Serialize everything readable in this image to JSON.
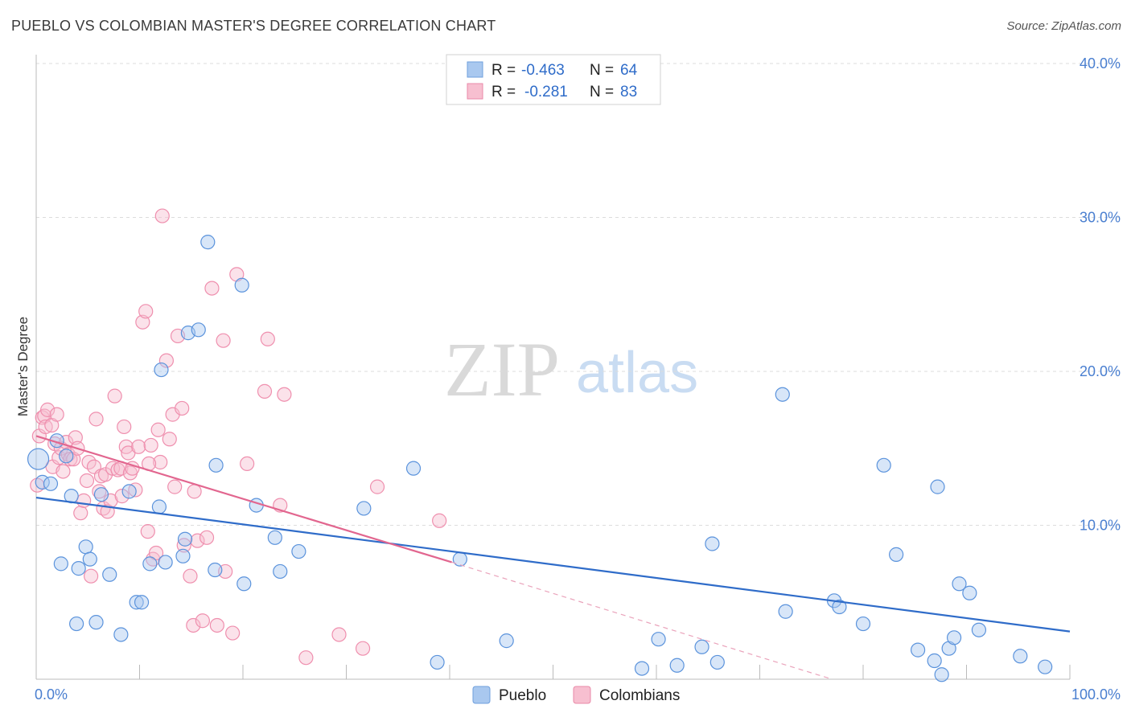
{
  "header": {
    "title": "PUEBLO VS COLOMBIAN MASTER'S DEGREE CORRELATION CHART",
    "source": "Source: ZipAtlas.com"
  },
  "legend": {
    "rows": [
      {
        "r_label": "R =",
        "r_value": "-0.463",
        "n_label": "N =",
        "n_value": "64",
        "color": "#a9c8ef",
        "stroke": "#6f9fdc"
      },
      {
        "r_label": "R =",
        "r_value": "-0.281",
        "n_label": "N =",
        "n_value": "83",
        "color": "#f7bfd0",
        "stroke": "#e98aa8"
      }
    ],
    "bottom": [
      {
        "label": "Pueblo",
        "color": "#a9c8ef",
        "stroke": "#6f9fdc"
      },
      {
        "label": "Colombians",
        "color": "#f7bfd0",
        "stroke": "#e98aa8"
      }
    ]
  },
  "watermark": {
    "zip": "ZIP",
    "atlas": "atlas"
  },
  "chart_data": {
    "type": "scatter",
    "title": "PUEBLO VS COLOMBIAN MASTER'S DEGREE CORRELATION CHART",
    "xlabel": "",
    "ylabel": "Master's Degree",
    "xlim": [
      0,
      100
    ],
    "ylim": [
      0,
      40
    ],
    "x_tick_labels": [
      "0.0%",
      "100.0%"
    ],
    "y_ticks": [
      10,
      20,
      30,
      40
    ],
    "y_tick_labels": [
      "10.0%",
      "20.0%",
      "30.0%",
      "40.0%"
    ],
    "grid": true,
    "legend_position": "top-center",
    "series": [
      {
        "name": "Pueblo",
        "color": "#5b93dc",
        "trend": {
          "x": [
            0,
            100
          ],
          "y": [
            11.8,
            3.1
          ],
          "color": "#2f6cc9"
        },
        "points": [
          [
            0.2,
            14.3
          ],
          [
            0.6,
            12.8
          ],
          [
            1.4,
            12.7
          ],
          [
            2.0,
            15.5
          ],
          [
            2.4,
            7.5
          ],
          [
            2.9,
            14.5
          ],
          [
            3.4,
            11.9
          ],
          [
            3.9,
            3.6
          ],
          [
            4.1,
            7.2
          ],
          [
            4.8,
            8.6
          ],
          [
            5.2,
            7.8
          ],
          [
            5.8,
            3.7
          ],
          [
            6.3,
            12.0
          ],
          [
            7.1,
            6.8
          ],
          [
            8.2,
            2.9
          ],
          [
            9.0,
            12.2
          ],
          [
            9.7,
            5.0
          ],
          [
            10.2,
            5.0
          ],
          [
            11.0,
            7.5
          ],
          [
            11.9,
            11.2
          ],
          [
            12.1,
            20.1
          ],
          [
            12.5,
            7.6
          ],
          [
            14.2,
            8.0
          ],
          [
            14.4,
            9.1
          ],
          [
            14.7,
            22.5
          ],
          [
            15.7,
            22.7
          ],
          [
            16.6,
            28.4
          ],
          [
            17.3,
            7.1
          ],
          [
            17.4,
            13.9
          ],
          [
            19.9,
            25.6
          ],
          [
            20.1,
            6.2
          ],
          [
            21.3,
            11.3
          ],
          [
            23.1,
            9.2
          ],
          [
            23.6,
            7.0
          ],
          [
            25.4,
            8.3
          ],
          [
            31.7,
            11.1
          ],
          [
            36.5,
            13.7
          ],
          [
            38.8,
            1.1
          ],
          [
            41.0,
            7.8
          ],
          [
            45.5,
            2.5
          ],
          [
            58.6,
            0.7
          ],
          [
            60.2,
            2.6
          ],
          [
            62.0,
            0.9
          ],
          [
            64.4,
            2.1
          ],
          [
            65.4,
            8.8
          ],
          [
            65.9,
            1.1
          ],
          [
            72.2,
            18.5
          ],
          [
            72.5,
            4.4
          ],
          [
            77.2,
            5.1
          ],
          [
            77.7,
            4.7
          ],
          [
            80.0,
            3.6
          ],
          [
            82.0,
            13.9
          ],
          [
            83.2,
            8.1
          ],
          [
            85.3,
            1.9
          ],
          [
            86.9,
            1.2
          ],
          [
            87.2,
            12.5
          ],
          [
            88.3,
            2.0
          ],
          [
            88.8,
            2.7
          ],
          [
            89.3,
            6.2
          ],
          [
            90.3,
            5.6
          ],
          [
            91.2,
            3.2
          ],
          [
            95.2,
            1.5
          ],
          [
            97.6,
            0.8
          ],
          [
            87.6,
            0.3
          ]
        ]
      },
      {
        "name": "Colombians",
        "color": "#ef8fae",
        "trend": {
          "x": [
            0,
            40.2
          ],
          "y": [
            15.8,
            7.6
          ],
          "color": "#e2668f",
          "dashed_to": [
            77,
            0
          ]
        },
        "points": [
          [
            0.1,
            12.6
          ],
          [
            0.3,
            15.8
          ],
          [
            0.6,
            17.0
          ],
          [
            0.8,
            17.1
          ],
          [
            0.9,
            16.4
          ],
          [
            1.1,
            17.5
          ],
          [
            1.5,
            16.5
          ],
          [
            1.6,
            13.8
          ],
          [
            1.8,
            15.3
          ],
          [
            2.0,
            17.2
          ],
          [
            2.2,
            14.4
          ],
          [
            2.4,
            15.0
          ],
          [
            2.6,
            13.5
          ],
          [
            2.9,
            15.4
          ],
          [
            3.1,
            14.6
          ],
          [
            3.3,
            14.3
          ],
          [
            3.6,
            14.3
          ],
          [
            3.8,
            15.7
          ],
          [
            4.0,
            15.0
          ],
          [
            4.3,
            10.8
          ],
          [
            4.6,
            11.6
          ],
          [
            4.9,
            12.9
          ],
          [
            5.1,
            14.1
          ],
          [
            5.3,
            6.7
          ],
          [
            5.6,
            13.8
          ],
          [
            5.8,
            16.9
          ],
          [
            6.1,
            12.2
          ],
          [
            6.3,
            13.2
          ],
          [
            6.5,
            11.1
          ],
          [
            6.7,
            13.3
          ],
          [
            6.9,
            10.9
          ],
          [
            7.2,
            11.6
          ],
          [
            7.4,
            13.7
          ],
          [
            7.6,
            18.4
          ],
          [
            7.9,
            13.6
          ],
          [
            8.2,
            13.7
          ],
          [
            8.3,
            11.9
          ],
          [
            8.5,
            16.4
          ],
          [
            8.7,
            15.1
          ],
          [
            8.9,
            14.7
          ],
          [
            9.1,
            13.4
          ],
          [
            9.3,
            13.7
          ],
          [
            9.6,
            12.3
          ],
          [
            9.9,
            15.1
          ],
          [
            10.3,
            23.2
          ],
          [
            10.6,
            23.9
          ],
          [
            10.8,
            9.6
          ],
          [
            11.1,
            15.2
          ],
          [
            11.3,
            7.8
          ],
          [
            11.6,
            8.2
          ],
          [
            11.8,
            16.2
          ],
          [
            12.0,
            14.1
          ],
          [
            12.2,
            30.1
          ],
          [
            12.6,
            20.7
          ],
          [
            12.9,
            15.6
          ],
          [
            13.2,
            17.2
          ],
          [
            13.4,
            12.5
          ],
          [
            13.7,
            22.3
          ],
          [
            14.1,
            17.6
          ],
          [
            14.3,
            8.7
          ],
          [
            14.9,
            6.7
          ],
          [
            15.2,
            3.5
          ],
          [
            15.6,
            9.0
          ],
          [
            15.3,
            12.2
          ],
          [
            16.1,
            3.8
          ],
          [
            16.5,
            9.2
          ],
          [
            17.0,
            25.4
          ],
          [
            17.5,
            3.5
          ],
          [
            18.1,
            22.0
          ],
          [
            18.3,
            7.0
          ],
          [
            19.0,
            3.0
          ],
          [
            19.4,
            26.3
          ],
          [
            22.1,
            18.7
          ],
          [
            22.4,
            22.1
          ],
          [
            23.6,
            11.3
          ],
          [
            24.0,
            18.5
          ],
          [
            26.1,
            1.4
          ],
          [
            29.3,
            2.9
          ],
          [
            31.6,
            2.0
          ],
          [
            33.0,
            12.5
          ],
          [
            39.0,
            10.3
          ],
          [
            20.4,
            14.0
          ],
          [
            10.9,
            14.0
          ]
        ]
      }
    ]
  }
}
